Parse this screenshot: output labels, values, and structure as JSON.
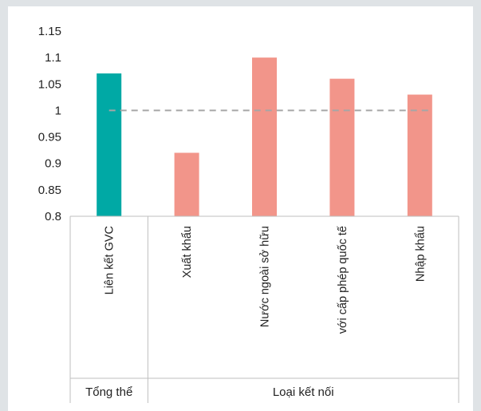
{
  "chart_data": {
    "type": "bar",
    "title": "",
    "xlabel": "",
    "ylabel": "",
    "ylim": [
      0.8,
      1.15
    ],
    "yticks": [
      "0.8",
      "0.85",
      "0.9",
      "0.95",
      "1",
      "1.05",
      "1.1",
      "1.15"
    ],
    "grid": false,
    "reference_line": {
      "value": 1,
      "style": "dashed",
      "color": "#a6a6a6"
    },
    "categories": [
      "Liên kết GVC",
      "Xuất khẩu",
      "Nước ngoài sở hữu",
      "với cấp phép quốc tế",
      "Nhập khẩu"
    ],
    "values": [
      1.07,
      0.92,
      1.1,
      1.06,
      1.03
    ],
    "bar_colors": [
      "#00a9a5",
      "#f2958a",
      "#f2958a",
      "#f2958a",
      "#f2958a"
    ],
    "groups": [
      {
        "label": "Tổng thể",
        "categories": [
          "Liên kết GVC"
        ]
      },
      {
        "label": "Loại kết nối",
        "categories": [
          "Xuất khẩu",
          "Nước ngoài sở hữu",
          "với cấp phép quốc tế",
          "Nhập khẩu"
        ]
      }
    ]
  }
}
